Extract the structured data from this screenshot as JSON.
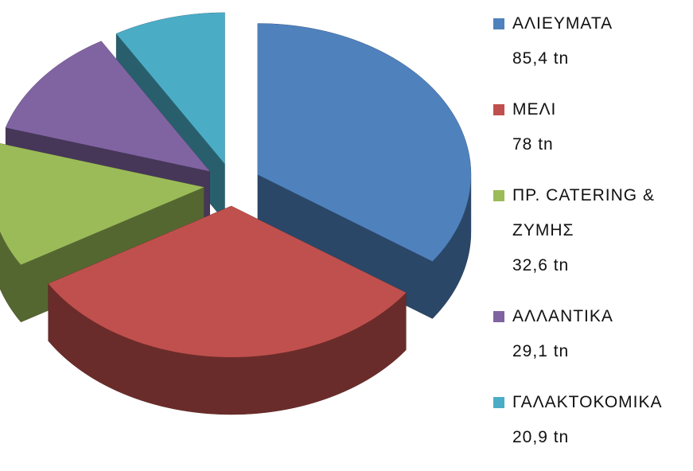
{
  "chart_data": {
    "type": "pie",
    "categories": [
      "ΑΛΙΕΥΜΑΤΑ",
      "ΜΕΛΙ",
      "ΠΡ. CATERING & ΖΥΜΗΣ",
      "ΑΛΛΑΝΤΙΚΑ",
      "ΓΑΛΑΚΤΟΚΟΜΙΚΑ"
    ],
    "values": [
      85.4,
      78,
      32.6,
      29.1,
      20.9
    ],
    "value_labels": [
      "85,4 tn",
      "78 tn",
      "32,6 tn",
      "29,1 tn",
      "20,9 tn"
    ],
    "colors": [
      "#4f81bd",
      "#c0504d",
      "#9bbb59",
      "#8064a2",
      "#4bacc6"
    ],
    "legend": "right"
  }
}
